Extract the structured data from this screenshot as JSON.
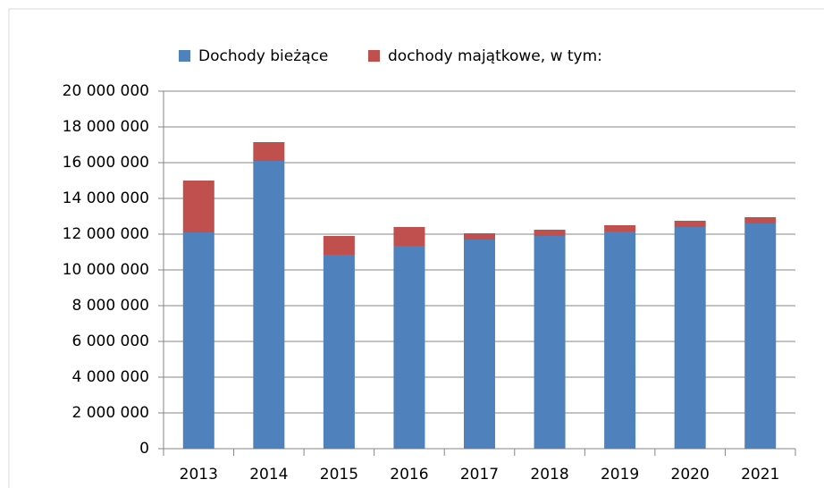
{
  "chart_data": {
    "type": "stacked_bar",
    "categories": [
      "2013",
      "2014",
      "2015",
      "2016",
      "2017",
      "2018",
      "2019",
      "2020",
      "2021"
    ],
    "series": [
      {
        "name": "Dochody bieżące",
        "color": "#4f81bd",
        "values": [
          12100000,
          16100000,
          10850000,
          11350000,
          11700000,
          11900000,
          12150000,
          12400000,
          12600000
        ]
      },
      {
        "name": "dochody majątkowe, w tym:",
        "color": "#c0504d",
        "values": [
          2900000,
          1050000,
          1050000,
          1050000,
          350000,
          350000,
          350000,
          350000,
          350000
        ]
      }
    ],
    "ylim": [
      0,
      20000000
    ],
    "yticks": [
      0,
      {
        "value": 2000000,
        "label": "2 000 000"
      },
      {
        "value": 4000000,
        "label": "4 000 000"
      },
      {
        "value": 6000000,
        "label": "6 000 000"
      },
      {
        "value": 8000000,
        "label": "8 000 000"
      },
      {
        "value": 10000000,
        "label": "10 000 000"
      },
      {
        "value": 12000000,
        "label": "12 000 000"
      },
      {
        "value": 14000000,
        "label": "14 000 000"
      },
      {
        "value": 16000000,
        "label": "16 000 000"
      },
      {
        "value": 18000000,
        "label": "18 000 000"
      },
      {
        "value": 20000000,
        "label": "20 000 000"
      }
    ],
    "grid": true,
    "legend": "top"
  }
}
